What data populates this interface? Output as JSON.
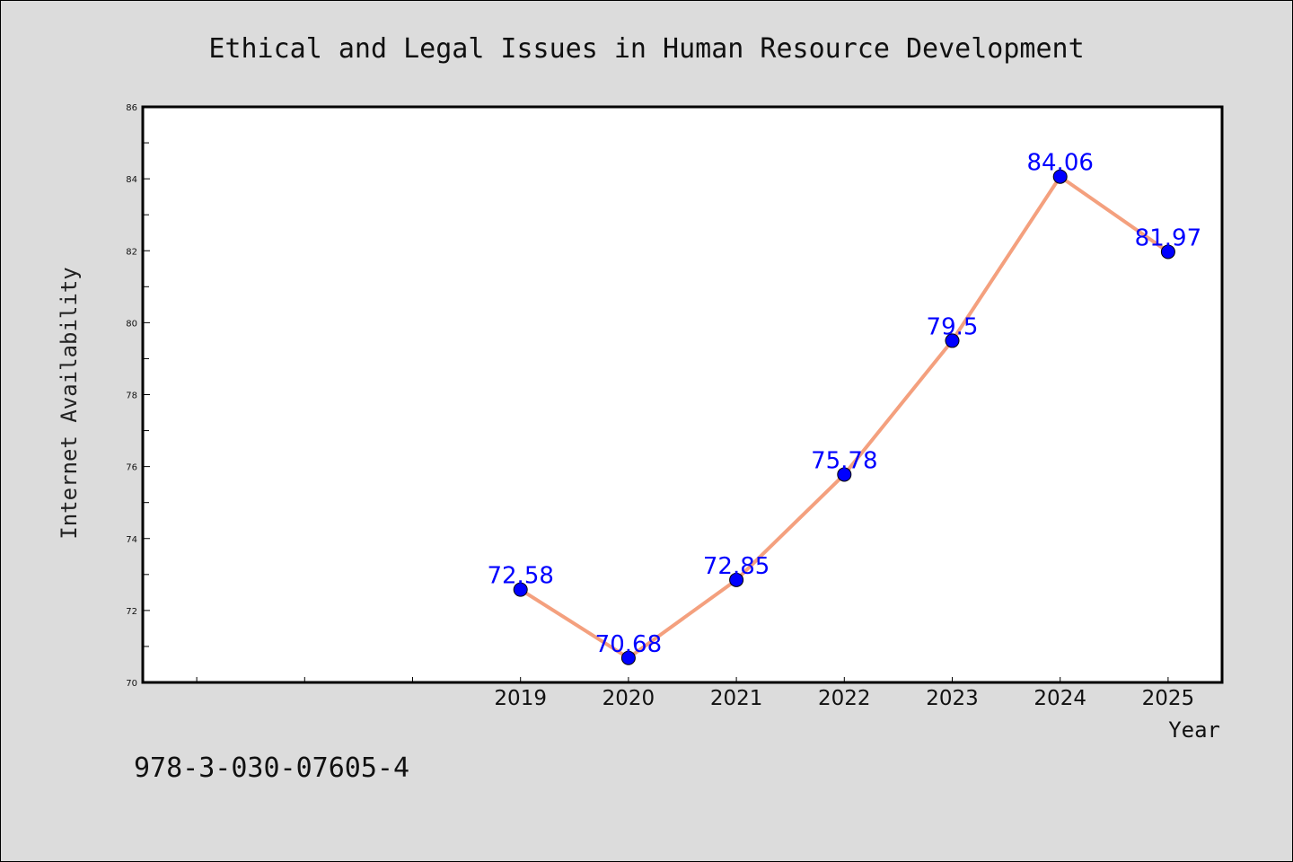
{
  "chart_data": {
    "type": "line",
    "title": "Ethical and Legal Issues in Human Resource Development",
    "xlabel": "Year",
    "ylabel": "Internet Availability",
    "x": [
      "2019",
      "2020",
      "2021",
      "2022",
      "2023",
      "2024",
      "2025"
    ],
    "series": [
      {
        "values": [
          72.58,
          70.68,
          72.85,
          75.78,
          79.5,
          84.06,
          81.97
        ],
        "labels": [
          "72.58",
          "70.68",
          "72.85",
          "75.78",
          "79.5",
          "84.06",
          "81.97"
        ]
      }
    ],
    "ylim": [
      70,
      86
    ],
    "yticks": [
      "70",
      "72",
      "74",
      "76",
      "78",
      "80",
      "82",
      "84",
      "86"
    ],
    "x_slot_count": 10,
    "first_labeled_slot": 3,
    "grid": false,
    "colors": {
      "line": "#f4a07e",
      "marker": "#0000ff",
      "label": "#0000ff",
      "plot_bg": "#ffffff",
      "page_bg": "#dcdcdc"
    }
  },
  "footer": {
    "isbn": "978-3-030-07605-4"
  }
}
